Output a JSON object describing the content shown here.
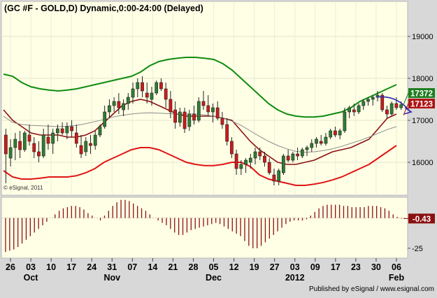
{
  "window": {
    "title": "(GC #F - GOLD,D) Dynamic,0:00-24:00 (Delayed)",
    "copyright": "© eSignal, 2011",
    "footer": "Published by eSignal / www.esignal.com"
  },
  "colors": {
    "background": "#ffffe6",
    "frame": "#d8d8d8",
    "candle_up": "#2e7d32",
    "candle_down": "#cc1a1a",
    "upper_band": "#0f8c0f",
    "lower_band": "#e01414",
    "ma_dark_red": "#8b1010",
    "ma_gray": "#8c8c8c",
    "oscillator": "#8b1010",
    "arrow": "#2b2bb0",
    "price_badge_green": "#1e7d1e",
    "price_badge_red": "#b01414"
  },
  "chart_data": [
    {
      "type": "candlestick",
      "title": "(GC #F - GOLD,D) Dynamic,0:00-24:00 (Delayed)",
      "ylim": [
        15250,
        19800
      ],
      "yticks": [
        16000,
        17000,
        18000,
        19000
      ],
      "grid": true,
      "x_ticks": [
        "26",
        "03",
        "10",
        "17",
        "24",
        "31",
        "07",
        "14",
        "21",
        "28",
        "05",
        "12",
        "19",
        "27",
        "03",
        "09",
        "17",
        "23",
        "30",
        "06"
      ],
      "x_month_labels": [
        {
          "label": "Oct",
          "at_tick": 1
        },
        {
          "label": "Nov",
          "at_tick": 5
        },
        {
          "label": "Dec",
          "at_tick": 10
        },
        {
          "label": "2012",
          "at_tick": 14
        },
        {
          "label": "Feb",
          "at_tick": 19
        }
      ],
      "last_price_labels": [
        {
          "value": "17372",
          "price": 17372,
          "style": "green"
        },
        {
          "value": "17123",
          "price": 17123,
          "style": "red"
        }
      ],
      "candles": [
        [
          16650,
          16800,
          15500,
          16200
        ],
        [
          16100,
          16550,
          15900,
          16350
        ],
        [
          16350,
          16700,
          16050,
          16550
        ],
        [
          16500,
          16750,
          16100,
          16300
        ],
        [
          16300,
          16750,
          16250,
          16700
        ],
        [
          16650,
          16900,
          16400,
          16500
        ],
        [
          16450,
          16600,
          16100,
          16250
        ],
        [
          16250,
          16500,
          16000,
          16150
        ],
        [
          16150,
          16800,
          16100,
          16650
        ],
        [
          16600,
          16900,
          16300,
          16450
        ],
        [
          16450,
          16800,
          16200,
          16700
        ],
        [
          16700,
          16900,
          16500,
          16800
        ],
        [
          16800,
          16950,
          16650,
          16700
        ],
        [
          16700,
          16950,
          16550,
          16850
        ],
        [
          16850,
          17000,
          16600,
          16750
        ],
        [
          16700,
          16900,
          16350,
          16450
        ],
        [
          16400,
          16650,
          16100,
          16200
        ],
        [
          16250,
          16600,
          16150,
          16500
        ],
        [
          16450,
          16650,
          16200,
          16400
        ],
        [
          16400,
          16750,
          16300,
          16650
        ],
        [
          16650,
          16900,
          16600,
          16850
        ],
        [
          16850,
          17350,
          16800,
          17200
        ],
        [
          17200,
          17500,
          17050,
          17350
        ],
        [
          17350,
          17550,
          17200,
          17450
        ],
        [
          17450,
          17650,
          17150,
          17300
        ],
        [
          17250,
          17500,
          17100,
          17400
        ],
        [
          17400,
          17650,
          17250,
          17550
        ],
        [
          17550,
          17900,
          17400,
          17750
        ],
        [
          17750,
          18000,
          17550,
          17900
        ],
        [
          17900,
          18050,
          17550,
          17700
        ],
        [
          17650,
          17900,
          17400,
          17550
        ],
        [
          17500,
          17800,
          17350,
          17650
        ],
        [
          17650,
          17950,
          17600,
          17900
        ],
        [
          17900,
          18000,
          17700,
          17750
        ],
        [
          17750,
          17900,
          17300,
          17500
        ],
        [
          17500,
          17700,
          17050,
          17200
        ],
        [
          17250,
          17450,
          16800,
          16950
        ],
        [
          16950,
          17300,
          16850,
          17200
        ],
        [
          17200,
          17300,
          16700,
          16800
        ],
        [
          16850,
          17250,
          16750,
          17150
        ],
        [
          17150,
          17350,
          16900,
          17000
        ],
        [
          17000,
          17550,
          16950,
          17450
        ],
        [
          17450,
          17700,
          17250,
          17350
        ],
        [
          17350,
          17600,
          17100,
          17200
        ],
        [
          17200,
          17400,
          16950,
          17300
        ],
        [
          17300,
          17450,
          17000,
          17050
        ],
        [
          17050,
          17200,
          16800,
          16900
        ],
        [
          16900,
          17050,
          16400,
          16500
        ],
        [
          16500,
          16600,
          16100,
          16200
        ],
        [
          16200,
          16300,
          15700,
          15850
        ],
        [
          15850,
          16050,
          15700,
          15950
        ],
        [
          15950,
          16100,
          15750,
          16050
        ],
        [
          16000,
          16200,
          15850,
          16100
        ],
        [
          16100,
          16350,
          15950,
          16250
        ],
        [
          16250,
          16350,
          16050,
          16150
        ],
        [
          16150,
          16250,
          15900,
          16000
        ],
        [
          16000,
          16100,
          15700,
          15750
        ],
        [
          15700,
          15850,
          15450,
          15550
        ],
        [
          15550,
          15850,
          15450,
          15800
        ],
        [
          15750,
          16200,
          15700,
          16150
        ],
        [
          16150,
          16300,
          16000,
          16050
        ],
        [
          16050,
          16250,
          16000,
          16200
        ],
        [
          16200,
          16350,
          16050,
          16150
        ],
        [
          16150,
          16350,
          16100,
          16300
        ],
        [
          16300,
          16400,
          16150,
          16350
        ],
        [
          16350,
          16550,
          16250,
          16450
        ],
        [
          16450,
          16600,
          16350,
          16550
        ],
        [
          16500,
          16650,
          16400,
          16450
        ],
        [
          16450,
          16700,
          16400,
          16600
        ],
        [
          16600,
          16800,
          16550,
          16750
        ],
        [
          16750,
          16850,
          16600,
          16650
        ],
        [
          16650,
          16800,
          16550,
          16750
        ],
        [
          16750,
          17300,
          16700,
          17200
        ],
        [
          17200,
          17350,
          17050,
          17300
        ],
        [
          17250,
          17400,
          17100,
          17200
        ],
        [
          17200,
          17400,
          17150,
          17350
        ],
        [
          17350,
          17500,
          17250,
          17450
        ],
        [
          17450,
          17550,
          17350,
          17500
        ],
        [
          17500,
          17600,
          17350,
          17550
        ],
        [
          17550,
          17700,
          17450,
          17600
        ],
        [
          17600,
          17650,
          17200,
          17250
        ],
        [
          17250,
          17350,
          17050,
          17150
        ],
        [
          17150,
          17450,
          17100,
          17400
        ],
        [
          17400,
          17550,
          17250,
          17300
        ],
        [
          17300,
          17450,
          17250,
          17372
        ]
      ],
      "series": [
        {
          "style": "upper_band",
          "values": [
            18100,
            18050,
            17900,
            17800,
            17750,
            17720,
            17700,
            17720,
            17750,
            17800,
            17850,
            17900,
            17950,
            18000,
            18050,
            18150,
            18300,
            18400,
            18450,
            18480,
            18500,
            18500,
            18480,
            18450,
            18350,
            18200,
            18000,
            17800,
            17600,
            17400,
            17250,
            17150,
            17100,
            17080,
            17080,
            17100,
            17150,
            17200,
            17300,
            17450,
            17550,
            17650,
            17750,
            17850
          ]
        },
        {
          "style": "lower_band",
          "values": [
            15800,
            15650,
            15600,
            15600,
            15620,
            15650,
            15650,
            15650,
            15680,
            15750,
            15850,
            16000,
            16100,
            16200,
            16300,
            16350,
            16350,
            16300,
            16200,
            16100,
            16000,
            15950,
            15920,
            15920,
            15950,
            16000,
            16000,
            15900,
            15700,
            15600,
            15550,
            15500,
            15450,
            15450,
            15480,
            15520,
            15580,
            15650,
            15750,
            15850,
            15950,
            16100,
            16250,
            16400
          ]
        },
        {
          "style": "ma_dark_red",
          "values": [
            17250,
            17000,
            16850,
            16700,
            16650,
            16650,
            16650,
            16600,
            16600,
            16650,
            16750,
            16950,
            17150,
            17350,
            17450,
            17500,
            17450,
            17350,
            17250,
            17150,
            17100,
            17100,
            17100,
            17100,
            17050,
            17000,
            16750,
            16500,
            16300,
            16150,
            16000,
            15950,
            15950,
            16000,
            16050,
            16150,
            16250,
            16300,
            16350,
            16450,
            16550,
            16800,
            17050,
            17150
          ]
        },
        {
          "style": "ma_gray",
          "values": [
            17100,
            16950,
            16900,
            16880,
            16870,
            16860,
            16850,
            16860,
            16880,
            16920,
            16970,
            17020,
            17080,
            17120,
            17150,
            17170,
            17180,
            17170,
            17160,
            17150,
            17150,
            17150,
            17130,
            17100,
            17050,
            16980,
            16880,
            16750,
            16620,
            16500,
            16400,
            16320,
            16260,
            16240,
            16250,
            16280,
            16320,
            16380,
            16450,
            16520,
            16600,
            16690,
            16780,
            16850
          ]
        }
      ],
      "arrows": [
        {
          "from": [
            80,
            17550
          ],
          "to": [
            86,
            17200
          ]
        }
      ]
    },
    {
      "type": "bar",
      "ylim": [
        -32,
        16
      ],
      "yticks": [
        -25
      ],
      "last_value_label": "-0.43",
      "values": [
        -28,
        -27,
        -26,
        -24,
        -21,
        -18,
        -15,
        -12,
        -9,
        -6,
        -3,
        0,
        3,
        6,
        8,
        9,
        10,
        10,
        9,
        7,
        4,
        2,
        0,
        -2,
        2,
        6,
        10,
        13,
        15,
        15,
        14,
        12,
        10,
        8,
        6,
        3,
        0,
        -2,
        -4,
        -6,
        -9,
        -12,
        -14,
        -14,
        -12,
        -10,
        -9,
        -8,
        -7,
        -6,
        -5,
        -4,
        -5,
        -7,
        -9,
        -11,
        -13,
        -15,
        -19,
        -23,
        -25,
        -25,
        -23,
        -20,
        -17,
        -14,
        -11,
        -8,
        -5,
        -3,
        -2,
        -2,
        -2,
        -1,
        2,
        5,
        8,
        10,
        11,
        11,
        11,
        11,
        10,
        10,
        9,
        9,
        9,
        9,
        10,
        10,
        10,
        9,
        8,
        6,
        3,
        1,
        -0.43
      ]
    }
  ]
}
